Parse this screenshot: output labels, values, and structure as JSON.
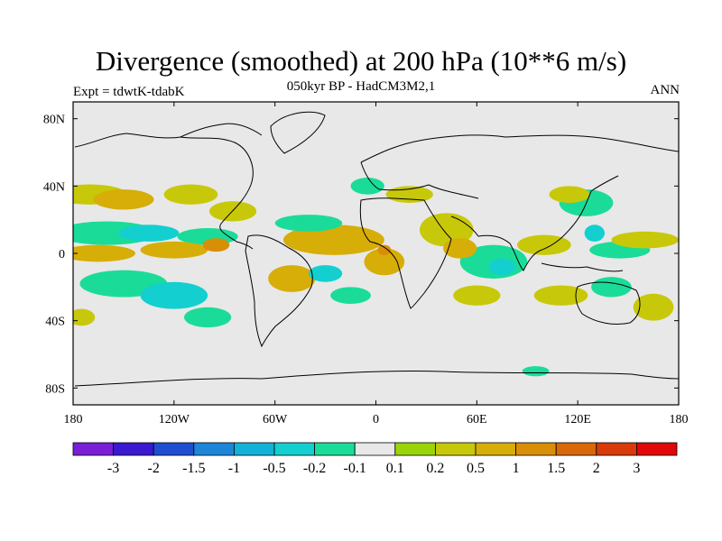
{
  "title": "Divergence (smoothed) at 200 hPa (10**6 m/s)",
  "subtitle": "050kyr BP - HadCM3M2,1",
  "left_label": "Expt = tdwtK-tdabK",
  "right_label": "ANN",
  "map": {
    "projection": "cylindrical equidistant",
    "lon_range": [
      -180,
      180
    ],
    "lat_range": [
      -90,
      90
    ],
    "background_color": "#e8e8e8",
    "x_ticks": [
      {
        "lon": -180,
        "label": "180"
      },
      {
        "lon": -120,
        "label": "120W"
      },
      {
        "lon": -60,
        "label": "60W"
      },
      {
        "lon": 0,
        "label": "0"
      },
      {
        "lon": 60,
        "label": "60E"
      },
      {
        "lon": 120,
        "label": "120E"
      },
      {
        "lon": 180,
        "label": "180"
      }
    ],
    "y_ticks": [
      {
        "lat": 80,
        "label": "80N"
      },
      {
        "lat": 40,
        "label": "40N"
      },
      {
        "lat": 0,
        "label": "0"
      },
      {
        "lat": -40,
        "label": "40S"
      },
      {
        "lat": -80,
        "label": "80S"
      }
    ]
  },
  "colorbar": {
    "colors": [
      "#7a1fd6",
      "#3a19d0",
      "#1f4fd0",
      "#1e85d8",
      "#12b2d8",
      "#14cfcf",
      "#1adc98",
      "#e8e8e8",
      "#9ad40a",
      "#c8c80a",
      "#d7ad08",
      "#d98e08",
      "#d86808",
      "#d83a0a",
      "#e00808"
    ],
    "labels": [
      "-3",
      "-2",
      "-1.5",
      "-1",
      "-0.5",
      "-0.2",
      "-0.1",
      "0.1",
      "0.2",
      "0.5",
      "1",
      "1.5",
      "2",
      "3"
    ]
  },
  "regions": [
    {
      "level": 0.2,
      "lon": -170,
      "lat": 35,
      "w": 22,
      "h": 6
    },
    {
      "level": 0.5,
      "lon": -150,
      "lat": 32,
      "w": 18,
      "h": 6
    },
    {
      "level": 0.2,
      "lon": -110,
      "lat": 35,
      "w": 16,
      "h": 6
    },
    {
      "level": 0.2,
      "lon": -85,
      "lat": 25,
      "w": 14,
      "h": 6
    },
    {
      "level": -0.2,
      "lon": -160,
      "lat": 12,
      "w": 30,
      "h": 7
    },
    {
      "level": -0.5,
      "lon": -135,
      "lat": 12,
      "w": 18,
      "h": 5
    },
    {
      "level": -0.2,
      "lon": -100,
      "lat": 10,
      "w": 18,
      "h": 5
    },
    {
      "level": 0.5,
      "lon": -165,
      "lat": 0,
      "w": 22,
      "h": 5
    },
    {
      "level": 0.5,
      "lon": -120,
      "lat": 2,
      "w": 20,
      "h": 5
    },
    {
      "level": 1,
      "lon": -95,
      "lat": 5,
      "w": 8,
      "h": 4
    },
    {
      "level": -0.2,
      "lon": -150,
      "lat": -18,
      "w": 26,
      "h": 8
    },
    {
      "level": -0.5,
      "lon": -120,
      "lat": -25,
      "w": 20,
      "h": 8
    },
    {
      "level": -0.2,
      "lon": -100,
      "lat": -38,
      "w": 14,
      "h": 6
    },
    {
      "level": 0.2,
      "lon": -175,
      "lat": -38,
      "w": 8,
      "h": 5
    },
    {
      "level": 0.5,
      "lon": -25,
      "lat": 8,
      "w": 30,
      "h": 9
    },
    {
      "level": 0.5,
      "lon": -50,
      "lat": -15,
      "w": 14,
      "h": 8
    },
    {
      "level": -0.2,
      "lon": -40,
      "lat": 18,
      "w": 20,
      "h": 5
    },
    {
      "level": -0.5,
      "lon": -30,
      "lat": -12,
      "w": 10,
      "h": 5
    },
    {
      "level": -0.2,
      "lon": -15,
      "lat": -25,
      "w": 12,
      "h": 5
    },
    {
      "level": 0.5,
      "lon": 5,
      "lat": -5,
      "w": 12,
      "h": 8
    },
    {
      "level": 1,
      "lon": 5,
      "lat": 2,
      "w": 4,
      "h": 3
    },
    {
      "level": -0.2,
      "lon": -5,
      "lat": 40,
      "w": 10,
      "h": 5
    },
    {
      "level": 0.2,
      "lon": 20,
      "lat": 35,
      "w": 14,
      "h": 5
    },
    {
      "level": 0.2,
      "lon": 42,
      "lat": 14,
      "w": 16,
      "h": 10
    },
    {
      "level": -0.2,
      "lon": 70,
      "lat": -5,
      "w": 20,
      "h": 10
    },
    {
      "level": -0.5,
      "lon": 75,
      "lat": -8,
      "w": 8,
      "h": 5
    },
    {
      "level": 0.2,
      "lon": 60,
      "lat": -25,
      "w": 14,
      "h": 6
    },
    {
      "level": 0.5,
      "lon": 50,
      "lat": 3,
      "w": 10,
      "h": 6
    },
    {
      "level": 0.2,
      "lon": 100,
      "lat": 5,
      "w": 16,
      "h": 6
    },
    {
      "level": -0.2,
      "lon": 125,
      "lat": 30,
      "w": 16,
      "h": 8
    },
    {
      "level": 0.2,
      "lon": 115,
      "lat": 35,
      "w": 12,
      "h": 5
    },
    {
      "level": -0.5,
      "lon": 130,
      "lat": 12,
      "w": 6,
      "h": 5
    },
    {
      "level": -0.2,
      "lon": 145,
      "lat": 2,
      "w": 18,
      "h": 5
    },
    {
      "level": 0.2,
      "lon": 160,
      "lat": 8,
      "w": 20,
      "h": 5
    },
    {
      "level": 0.2,
      "lon": 110,
      "lat": -25,
      "w": 16,
      "h": 6
    },
    {
      "level": -0.2,
      "lon": 140,
      "lat": -20,
      "w": 12,
      "h": 6
    },
    {
      "level": 0.2,
      "lon": 165,
      "lat": -32,
      "w": 12,
      "h": 8
    },
    {
      "level": -0.2,
      "lon": 95,
      "lat": -70,
      "w": 8,
      "h": 3
    }
  ]
}
